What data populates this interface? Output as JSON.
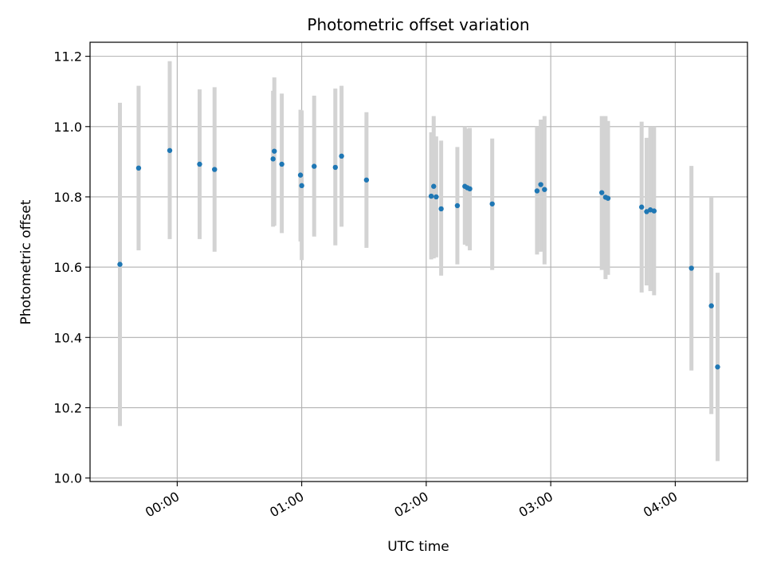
{
  "chart_data": {
    "type": "scatter",
    "title": "Photometric offset variation",
    "xlabel": "UTC time",
    "ylabel": "Photometric offset",
    "x_unit": "hours UTC (negative = before 00:00)",
    "xlim": [
      -0.7,
      4.58
    ],
    "ylim": [
      9.99,
      11.24
    ],
    "grid": true,
    "x_ticks": [
      0,
      1,
      2,
      3,
      4
    ],
    "x_tick_labels": [
      "00:00",
      "01:00",
      "02:00",
      "03:00",
      "04:00"
    ],
    "y_ticks": [
      10.0,
      10.2,
      10.4,
      10.6,
      10.8,
      11.0,
      11.2
    ],
    "y_tick_labels": [
      "10.0",
      "10.2",
      "10.4",
      "10.6",
      "10.8",
      "11.0",
      "11.2"
    ],
    "colors": {
      "marker": "#1f77b4",
      "errorbar": "#d3d3d3",
      "grid": "#b0b0b0"
    },
    "points": [
      {
        "x": -0.46,
        "y": 10.608,
        "low": 10.148,
        "high": 11.068
      },
      {
        "x": -0.31,
        "y": 10.882,
        "low": 10.648,
        "high": 11.116
      },
      {
        "x": -0.06,
        "y": 10.932,
        "low": 10.68,
        "high": 11.186
      },
      {
        "x": 0.18,
        "y": 10.893,
        "low": 10.68,
        "high": 11.106
      },
      {
        "x": 0.3,
        "y": 10.878,
        "low": 10.644,
        "high": 11.112
      },
      {
        "x": 0.77,
        "y": 10.908,
        "low": 10.715,
        "high": 11.102
      },
      {
        "x": 0.78,
        "y": 10.93,
        "low": 10.718,
        "high": 11.14
      },
      {
        "x": 0.84,
        "y": 10.893,
        "low": 10.697,
        "high": 11.094
      },
      {
        "x": 0.99,
        "y": 10.862,
        "low": 10.673,
        "high": 11.048
      },
      {
        "x": 1.0,
        "y": 10.832,
        "low": 10.62,
        "high": 11.046
      },
      {
        "x": 1.1,
        "y": 10.887,
        "low": 10.687,
        "high": 11.088
      },
      {
        "x": 1.27,
        "y": 10.884,
        "low": 10.662,
        "high": 11.108
      },
      {
        "x": 1.32,
        "y": 10.916,
        "low": 10.715,
        "high": 11.116
      },
      {
        "x": 1.52,
        "y": 10.848,
        "low": 10.655,
        "high": 11.041
      },
      {
        "x": 2.04,
        "y": 10.802,
        "low": 10.622,
        "high": 10.984
      },
      {
        "x": 2.06,
        "y": 10.83,
        "low": 10.625,
        "high": 11.03
      },
      {
        "x": 2.08,
        "y": 10.8,
        "low": 10.628,
        "high": 10.972
      },
      {
        "x": 2.12,
        "y": 10.766,
        "low": 10.576,
        "high": 10.96
      },
      {
        "x": 2.25,
        "y": 10.775,
        "low": 10.608,
        "high": 10.942
      },
      {
        "x": 2.31,
        "y": 10.83,
        "low": 10.664,
        "high": 11.0
      },
      {
        "x": 2.33,
        "y": 10.826,
        "low": 10.66,
        "high": 10.994
      },
      {
        "x": 2.35,
        "y": 10.823,
        "low": 10.648,
        "high": 10.996
      },
      {
        "x": 2.53,
        "y": 10.78,
        "low": 10.592,
        "high": 10.966
      },
      {
        "x": 2.89,
        "y": 10.817,
        "low": 10.636,
        "high": 11.0
      },
      {
        "x": 2.92,
        "y": 10.835,
        "low": 10.644,
        "high": 11.02
      },
      {
        "x": 2.95,
        "y": 10.821,
        "low": 10.608,
        "high": 11.03
      },
      {
        "x": 3.41,
        "y": 10.812,
        "low": 10.592,
        "high": 11.03
      },
      {
        "x": 3.44,
        "y": 10.799,
        "low": 10.566,
        "high": 11.03
      },
      {
        "x": 3.46,
        "y": 10.796,
        "low": 10.578,
        "high": 11.016
      },
      {
        "x": 3.73,
        "y": 10.771,
        "low": 10.528,
        "high": 11.014
      },
      {
        "x": 3.77,
        "y": 10.758,
        "low": 10.548,
        "high": 10.968
      },
      {
        "x": 3.8,
        "y": 10.763,
        "low": 10.532,
        "high": 11.0
      },
      {
        "x": 3.83,
        "y": 10.76,
        "low": 10.52,
        "high": 11.0
      },
      {
        "x": 4.13,
        "y": 10.597,
        "low": 10.306,
        "high": 10.888
      },
      {
        "x": 4.29,
        "y": 10.49,
        "low": 10.182,
        "high": 10.798
      },
      {
        "x": 4.34,
        "y": 10.316,
        "low": 10.048,
        "high": 10.584
      }
    ]
  }
}
